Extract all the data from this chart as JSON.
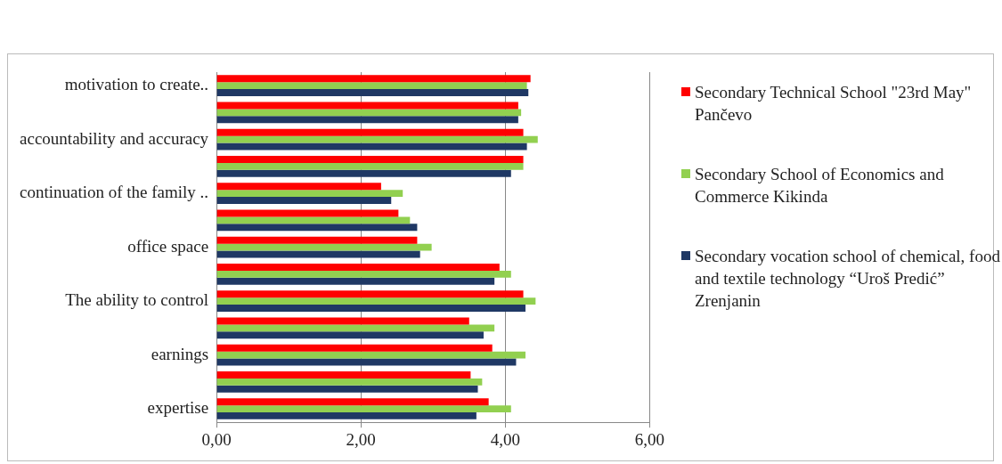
{
  "chart_data": {
    "type": "bar",
    "orientation": "horizontal",
    "categories": [
      "motivation to create..",
      null,
      "accountability and accuracy",
      null,
      "continuation of the family ..",
      null,
      "office space",
      null,
      "The ability to control",
      null,
      "earnings",
      null,
      "expertise"
    ],
    "series": [
      {
        "name": "Secondary Technical School \"23rd May\" Pančevo",
        "color": "#ff0000",
        "values": [
          4.35,
          4.18,
          4.25,
          4.25,
          2.28,
          2.52,
          2.78,
          3.92,
          4.25,
          3.5,
          3.82,
          3.52,
          3.77
        ]
      },
      {
        "name": "Secondary School of Economics and Commerce Kikinda",
        "color": "#92d050",
        "values": [
          4.3,
          4.22,
          4.45,
          4.25,
          2.58,
          2.68,
          2.98,
          4.08,
          4.42,
          3.85,
          4.28,
          3.68,
          4.08
        ]
      },
      {
        "name": "Secondary vocation school of chemical, food and textile technology “Uroš Predić” Zrenjanin",
        "color": "#1f3864",
        "values": [
          4.32,
          4.18,
          4.3,
          4.08,
          2.42,
          2.78,
          2.82,
          3.85,
          4.28,
          3.7,
          4.15,
          3.62,
          3.6
        ]
      }
    ],
    "xlim": [
      0,
      6
    ],
    "xticks": [
      {
        "value": 0,
        "label": "0,00"
      },
      {
        "value": 2,
        "label": "2,00"
      },
      {
        "value": 4,
        "label": "4,00"
      },
      {
        "value": 6,
        "label": "6,00"
      }
    ],
    "grid": "x",
    "legend": "right"
  }
}
